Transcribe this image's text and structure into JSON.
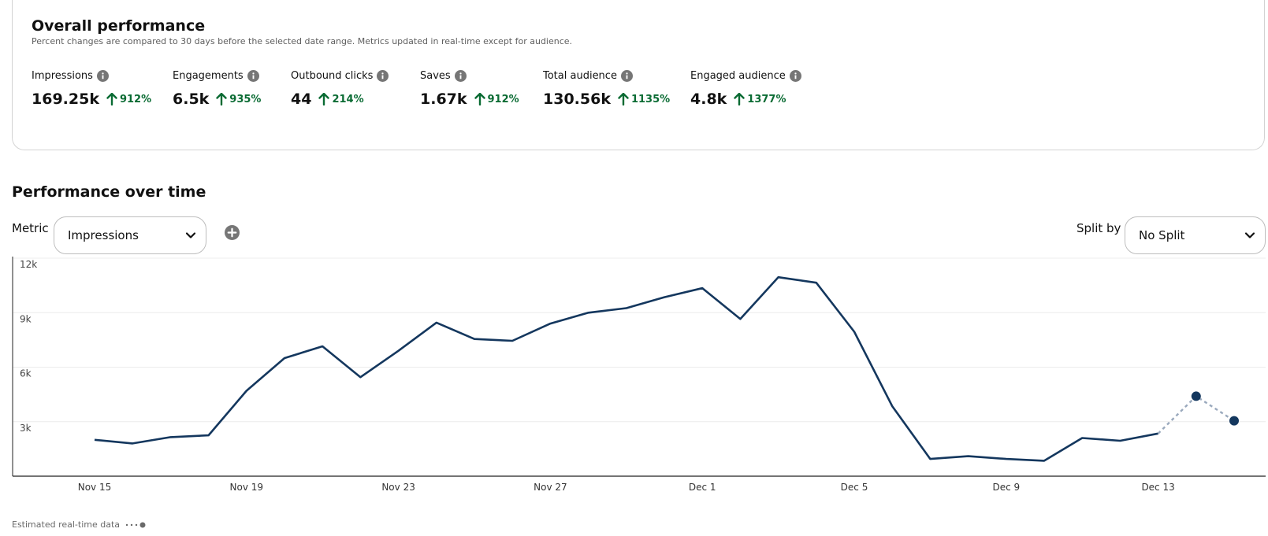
{
  "overall": {
    "title": "Overall performance",
    "subtitle": "Percent changes are compared to 30 days before the selected date range. Metrics updated in real-time except for audience.",
    "metrics": [
      {
        "label": "Impressions",
        "value": "169.25k",
        "change": "912%"
      },
      {
        "label": "Engagements",
        "value": "6.5k",
        "change": "935%"
      },
      {
        "label": "Outbound clicks",
        "value": "44",
        "change": "214%"
      },
      {
        "label": "Saves",
        "value": "1.67k",
        "change": "912%"
      },
      {
        "label": "Total audience",
        "value": "130.56k",
        "change": "1135%"
      },
      {
        "label": "Engaged audience",
        "value": "4.8k",
        "change": "1377%"
      }
    ],
    "change_color": "#0a6b33"
  },
  "over_time": {
    "title": "Performance over time",
    "metric_label": "Metric",
    "metric_value": "Impressions",
    "split_label": "Split by",
    "split_value": "No Split"
  },
  "legend": {
    "estimated_label": "Estimated real-time data"
  },
  "chart_data": {
    "type": "line",
    "x": [
      "Nov 15",
      "Nov 16",
      "Nov 17",
      "Nov 18",
      "Nov 19",
      "Nov 20",
      "Nov 21",
      "Nov 22",
      "Nov 23",
      "Nov 24",
      "Nov 25",
      "Nov 26",
      "Nov 27",
      "Nov 28",
      "Nov 29",
      "Nov 30",
      "Dec 1",
      "Dec 2",
      "Dec 3",
      "Dec 4",
      "Dec 5",
      "Dec 6",
      "Dec 7",
      "Dec 8",
      "Dec 9",
      "Dec 10",
      "Dec 11",
      "Dec 12",
      "Dec 13",
      "Dec 14",
      "Dec 15"
    ],
    "series": [
      {
        "name": "Impressions",
        "values": [
          2000,
          1800,
          2150,
          2250,
          4700,
          6500,
          7150,
          5450,
          6900,
          8450,
          7550,
          7450,
          8400,
          9000,
          9250,
          9850,
          10350,
          8650,
          10950,
          10650,
          7950,
          3850,
          950,
          1100,
          950,
          850,
          2100,
          1950,
          2350,
          4400,
          3050
        ]
      }
    ],
    "estimated_from_index": 28,
    "x_tick_labels": [
      "Nov 15",
      "Nov 19",
      "Nov 23",
      "Nov 27",
      "Dec 1",
      "Dec 5",
      "Dec 9",
      "Dec 13"
    ],
    "y_tick_labels": [
      "3k",
      "6k",
      "9k",
      "12k"
    ],
    "y_ticks": [
      3000,
      6000,
      9000,
      12000
    ],
    "ylim": [
      0,
      12000
    ],
    "grid": true,
    "line_color": "#14375e",
    "estimated_color": "#9aa9bd"
  }
}
